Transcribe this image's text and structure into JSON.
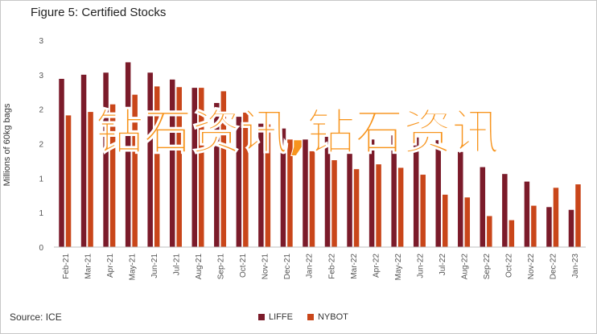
{
  "title": "Figure 5: Certified Stocks",
  "source": "Source: ICE",
  "watermark": "钻石资讯,钻石资讯",
  "colors": {
    "LIFFE": "#7b1b2a",
    "NYBOT": "#c9461a"
  },
  "chart_data": {
    "type": "bar",
    "title": "Figure 5: Certified Stocks",
    "ylabel": "Millions of 60kg bags",
    "xlabel": "",
    "ylim": [
      0,
      3
    ],
    "yticks": [
      0,
      0.5,
      1,
      1.5,
      2,
      2.5,
      3
    ],
    "ytick_labels": [
      "0",
      "1",
      "1",
      "2",
      "2",
      "3",
      "3"
    ],
    "grid": false,
    "legend_position": "bottom",
    "categories": [
      "Feb-21",
      "Mar-21",
      "Apr-21",
      "May-21",
      "Jun-21",
      "Jul-21",
      "Aug-21",
      "Sep-21",
      "Oct-21",
      "Nov-21",
      "Dec-21",
      "Jan-22",
      "Feb-22",
      "Mar-22",
      "Apr-22",
      "May-22",
      "Jun-22",
      "Jul-22",
      "Aug-22",
      "Sep-22",
      "Oct-22",
      "Nov-22",
      "Dec-22",
      "Jan-23"
    ],
    "series": [
      {
        "name": "LIFFE",
        "values": [
          2.44,
          2.5,
          2.53,
          2.68,
          2.53,
          2.43,
          2.31,
          2.09,
          1.89,
          1.79,
          1.72,
          1.56,
          1.62,
          1.62,
          1.56,
          1.62,
          1.59,
          1.55,
          1.38,
          1.16,
          1.06,
          0.95,
          0.58,
          0.54
        ]
      },
      {
        "name": "NYBOT",
        "values": [
          1.91,
          1.96,
          2.07,
          2.21,
          2.33,
          2.32,
          2.31,
          2.26,
          1.95,
          1.78,
          1.56,
          1.39,
          1.26,
          1.13,
          1.2,
          1.15,
          1.05,
          0.76,
          0.72,
          0.45,
          0.39,
          0.6,
          0.86,
          0.91
        ]
      }
    ]
  }
}
